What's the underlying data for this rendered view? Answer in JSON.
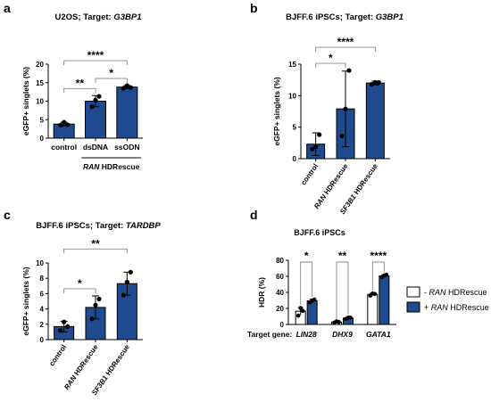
{
  "chart_data": [
    {
      "panel": "a",
      "type": "bar",
      "title_prefix": "U2OS; Target: ",
      "title_gene": "G3BP1",
      "categories": [
        "control",
        "dsDNA",
        "ssODN"
      ],
      "values": [
        3.8,
        10.0,
        13.8
      ],
      "errors": [
        0.5,
        1.5,
        0.4
      ],
      "points": [
        [
          3.5,
          4.3,
          3.6
        ],
        [
          8.5,
          10.3,
          11.3
        ],
        [
          13.5,
          14.2,
          13.7
        ]
      ],
      "ylabel": "eGFP+ singlets (%)",
      "ylim": [
        0,
        20
      ],
      "yticks": [
        0,
        5,
        10,
        15,
        20
      ],
      "tick_labels_rotated": false,
      "significance": [
        {
          "from": 0,
          "to": 1,
          "label": "**"
        },
        {
          "from": 1,
          "to": 2,
          "label": "*"
        },
        {
          "from": 0,
          "to": 2,
          "label": "****"
        }
      ],
      "group_label": {
        "italic": "RAN",
        "rest": " HDRescue",
        "span": [
          1,
          2
        ]
      },
      "bar_color": "#1f4a8f"
    },
    {
      "panel": "b",
      "type": "bar",
      "title_prefix": "BJFF.6 iPSCs; Target: ",
      "title_gene": "G3BP1",
      "categories": [
        {
          "italic": "",
          "rest": "control"
        },
        {
          "italic": "RAN",
          "rest": " HDRescue"
        },
        {
          "italic": "SF3B1",
          "rest": " HDRescue"
        }
      ],
      "values": [
        2.3,
        7.9,
        12.0
      ],
      "errors": [
        1.8,
        6.0,
        0.3
      ],
      "points": [
        [
          1.5,
          1.9,
          3.8
        ],
        [
          3.6,
          7.9,
          14.0
        ],
        [
          11.8,
          12.1,
          12.1
        ]
      ],
      "ylabel": "eGFP+ singlets (%)",
      "ylim": [
        0,
        15
      ],
      "yticks": [
        0,
        5,
        10,
        15
      ],
      "tick_labels_rotated": true,
      "significance": [
        {
          "from": 0,
          "to": 1,
          "label": "*"
        },
        {
          "from": 0,
          "to": 2,
          "label": "****"
        }
      ],
      "bar_color": "#1f4a8f"
    },
    {
      "panel": "c",
      "type": "bar",
      "title_prefix": "BJFF.6 iPSCs; Target: ",
      "title_gene": "TARDBP",
      "categories": [
        {
          "italic": "",
          "rest": "control"
        },
        {
          "italic": "RAN",
          "rest": " HDRescue"
        },
        {
          "italic": "SF3B1",
          "rest": " HDRescue"
        }
      ],
      "values": [
        1.7,
        4.2,
        7.3
      ],
      "errors": [
        0.7,
        1.5,
        1.5
      ],
      "points": [
        [
          1.2,
          2.3,
          1.7
        ],
        [
          2.7,
          4.5,
          5.3
        ],
        [
          5.8,
          7.5,
          8.8
        ]
      ],
      "ylabel": "eGFP+ singlets (%)",
      "ylim": [
        0,
        10
      ],
      "yticks": [
        0,
        2,
        4,
        6,
        8,
        10
      ],
      "tick_labels_rotated": true,
      "significance": [
        {
          "from": 0,
          "to": 1,
          "label": "*"
        },
        {
          "from": 0,
          "to": 2,
          "label": "**"
        }
      ],
      "bar_color": "#1f4a8f"
    },
    {
      "panel": "d",
      "type": "bar",
      "title": "BJFF.6 iPSCs",
      "ylabel": "HDR (%)",
      "ylim": [
        0,
        80
      ],
      "yticks": [
        0,
        20,
        40,
        60,
        80
      ],
      "xlabel_prefix": "Target gene:",
      "categories": [
        "LIN28",
        "DHX9",
        "GATA1"
      ],
      "series": [
        {
          "name_prefix": "- ",
          "name_italic": "RAN",
          "name_rest": " HDRescue",
          "color": "#ffffff",
          "values": [
            16.5,
            3.0,
            37.5
          ],
          "errors": [
            4.5,
            0.8,
            1.5
          ],
          "points": [
            [
              11.0,
              20.5,
              17.0
            ],
            [
              2.3,
              3.8,
              3.0
            ],
            [
              36.0,
              38.5,
              38.0
            ]
          ]
        },
        {
          "name_prefix": "+ ",
          "name_italic": "RAN",
          "name_rest": " HDRescue",
          "color": "#1f4a8f",
          "values": [
            29.5,
            8.0,
            60.5
          ],
          "errors": [
            2.0,
            1.0,
            1.5
          ],
          "points": [
            [
              27.5,
              30.0,
              31.0
            ],
            [
              7.0,
              8.5,
              8.5
            ],
            [
              59.0,
              61.0,
              62.0
            ]
          ]
        }
      ],
      "significance": [
        "*",
        "**",
        "****"
      ],
      "legend_position": "right"
    }
  ],
  "panel_letters": [
    "a",
    "b",
    "c",
    "d"
  ]
}
